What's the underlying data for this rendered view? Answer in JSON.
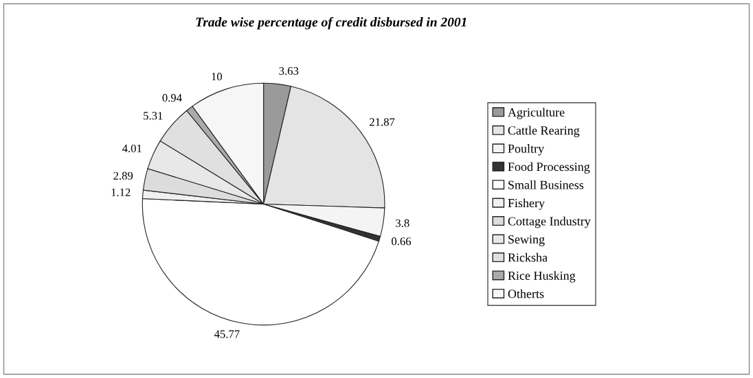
{
  "chart_data": {
    "type": "pie",
    "title": "Trade wise percentage of credit disbursed in 2001",
    "categories": [
      "Agriculture",
      "Cattle Rearing",
      "Poultry",
      "Food Processing",
      "Small Business",
      "Fishery",
      "Cottage Industry",
      "Sewing",
      "Ricksha",
      "Rice Husking",
      "Otherts"
    ],
    "values": [
      3.63,
      21.87,
      3.8,
      0.66,
      45.77,
      1.12,
      2.89,
      4.01,
      5.31,
      0.94,
      10
    ],
    "colors": [
      "#9a9a9a",
      "#e4e4e4",
      "#f4f4f4",
      "#333333",
      "#ffffff",
      "#f0f0f0",
      "#dcdcdc",
      "#e8e8e8",
      "#e0e0e0",
      "#aaaaaa",
      "#f6f6f6"
    ],
    "data_labels": true,
    "legend": "right"
  }
}
